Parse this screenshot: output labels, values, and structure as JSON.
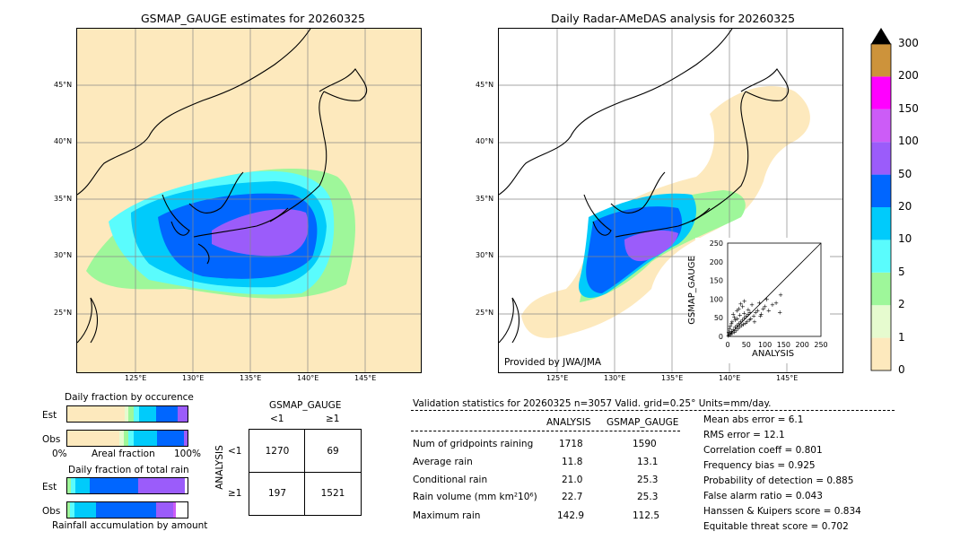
{
  "left_map": {
    "title": "GSMAP_GAUGE estimates for 20260325",
    "lat_ticks": [
      "45°N",
      "40°N",
      "35°N",
      "30°N",
      "25°N"
    ],
    "lon_ticks": [
      "125°E",
      "130°E",
      "135°E",
      "140°E",
      "145°E"
    ]
  },
  "right_map": {
    "title": "Daily Radar-AMeDAS analysis for 20260325",
    "lat_ticks": [
      "45°N",
      "40°N",
      "35°N",
      "30°N",
      "25°N"
    ],
    "lon_ticks": [
      "125°E",
      "130°E",
      "135°E",
      "140°E",
      "145°E"
    ],
    "credit": "Provided by JWA/JMA"
  },
  "colorbar": {
    "levels": [
      "0",
      "1",
      "2",
      "5",
      "10",
      "20",
      "50",
      "100",
      "150",
      "200",
      "300"
    ],
    "colors": [
      "#fde9bd",
      "#e6fbcf",
      "#9ef79a",
      "#5afcfd",
      "#00cbfb",
      "#0066ff",
      "#9b5cfa",
      "#cc5cf7",
      "#ff00ff",
      "#cd933b"
    ]
  },
  "occurrence": {
    "title": "Daily fraction by occurence",
    "rows": [
      "Est",
      "Obs"
    ],
    "axis_left": "0%",
    "axis_mid": "Areal fraction",
    "axis_right": "100%"
  },
  "total_rain": {
    "title": "Daily fraction of total rain",
    "rows": [
      "Est",
      "Obs"
    ],
    "footer": "Rainfall accumulation by amount"
  },
  "contingency": {
    "col_title": "GSMAP_GAUGE",
    "col_labels": [
      "<1",
      "≥1"
    ],
    "row_title": "ANALYSIS",
    "row_labels": [
      "<1",
      "≥1"
    ],
    "cells": [
      [
        "1270",
        "69"
      ],
      [
        "197",
        "1521"
      ]
    ]
  },
  "validation": {
    "header": "Validation statistics for 20260325  n=3057 Valid. grid=0.25° Units=mm/day.",
    "col_analysis": "ANALYSIS",
    "col_gsmap": "GSMAP_GAUGE",
    "rows": [
      {
        "label": "Num of gridpoints raining",
        "analysis": "1718",
        "gsmap": "1590"
      },
      {
        "label": "Average rain",
        "analysis": "11.8",
        "gsmap": "13.1"
      },
      {
        "label": "Conditional rain",
        "analysis": "21.0",
        "gsmap": "25.3"
      },
      {
        "label": "Rain volume (mm km²10⁶)",
        "analysis": "22.7",
        "gsmap": "25.3"
      },
      {
        "label": "Maximum rain",
        "analysis": "142.9",
        "gsmap": "112.5"
      }
    ],
    "scores": [
      "Mean abs error =    6.1",
      "RMS error =   12.1",
      "Correlation coeff =  0.801",
      "Frequency bias =  0.925",
      "Probability of detection =  0.885",
      "False alarm ratio =  0.043",
      "Hanssen & Kuipers score =  0.834",
      "Equitable threat score =  0.702"
    ]
  },
  "chart_data": {
    "type": "scatter",
    "xlabel": "ANALYSIS",
    "ylabel": "GSMAP_GAUGE",
    "xlim": [
      0,
      250
    ],
    "ylim": [
      0,
      250
    ],
    "x_ticks": [
      "0",
      "50",
      "100",
      "150",
      "200",
      "250"
    ],
    "y_ticks": [
      "0",
      "50",
      "100",
      "150",
      "200",
      "250"
    ],
    "points": [
      [
        2,
        3
      ],
      [
        5,
        8
      ],
      [
        8,
        6
      ],
      [
        10,
        14
      ],
      [
        12,
        9
      ],
      [
        15,
        18
      ],
      [
        18,
        12
      ],
      [
        20,
        25
      ],
      [
        22,
        16
      ],
      [
        25,
        30
      ],
      [
        28,
        22
      ],
      [
        30,
        35
      ],
      [
        32,
        26
      ],
      [
        35,
        40
      ],
      [
        38,
        30
      ],
      [
        40,
        45
      ],
      [
        42,
        33
      ],
      [
        45,
        50
      ],
      [
        48,
        36
      ],
      [
        50,
        55
      ],
      [
        52,
        40
      ],
      [
        55,
        60
      ],
      [
        58,
        45
      ],
      [
        60,
        65
      ],
      [
        25,
        70
      ],
      [
        30,
        75
      ],
      [
        15,
        60
      ],
      [
        40,
        80
      ],
      [
        70,
        55
      ],
      [
        75,
        65
      ],
      [
        80,
        70
      ],
      [
        90,
        60
      ],
      [
        95,
        75
      ],
      [
        100,
        80
      ],
      [
        110,
        70
      ],
      [
        120,
        85
      ],
      [
        130,
        90
      ],
      [
        140,
        65
      ],
      [
        142,
        112
      ],
      [
        105,
        100
      ],
      [
        85,
        90
      ],
      [
        65,
        85
      ],
      [
        45,
        95
      ],
      [
        35,
        88
      ],
      [
        20,
        45
      ],
      [
        10,
        35
      ],
      [
        5,
        20
      ],
      [
        3,
        12
      ],
      [
        7,
        28
      ],
      [
        12,
        40
      ],
      [
        18,
        52
      ],
      [
        26,
        48
      ],
      [
        33,
        58
      ],
      [
        44,
        62
      ],
      [
        55,
        72
      ],
      [
        62,
        48
      ],
      [
        72,
        40
      ],
      [
        88,
        55
      ]
    ]
  }
}
